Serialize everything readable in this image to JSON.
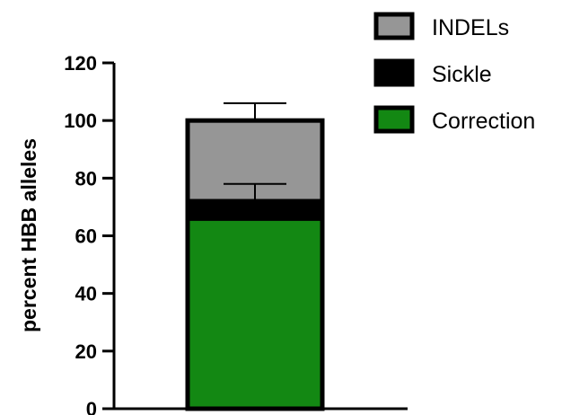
{
  "chart_data": {
    "type": "bar",
    "stacked": true,
    "title": "",
    "xlabel": "",
    "ylabel": "percent HBB alleles",
    "ylim": [
      0,
      120
    ],
    "yticks": [
      "0",
      "20",
      "40",
      "60",
      "80",
      "100",
      "120"
    ],
    "categories": [
      ""
    ],
    "series": [
      {
        "name": "Correction",
        "values": [
          66
        ],
        "color": "#138813"
      },
      {
        "name": "Sickle",
        "values": [
          6
        ],
        "color": "#000000",
        "error_bar": 6
      },
      {
        "name": "INDELs",
        "values": [
          28
        ],
        "color": "#969696",
        "error_bar": 6
      }
    ],
    "legend": {
      "placement": "top-right",
      "order": [
        "INDELs",
        "Sickle",
        "Correction"
      ]
    },
    "grid": false
  }
}
